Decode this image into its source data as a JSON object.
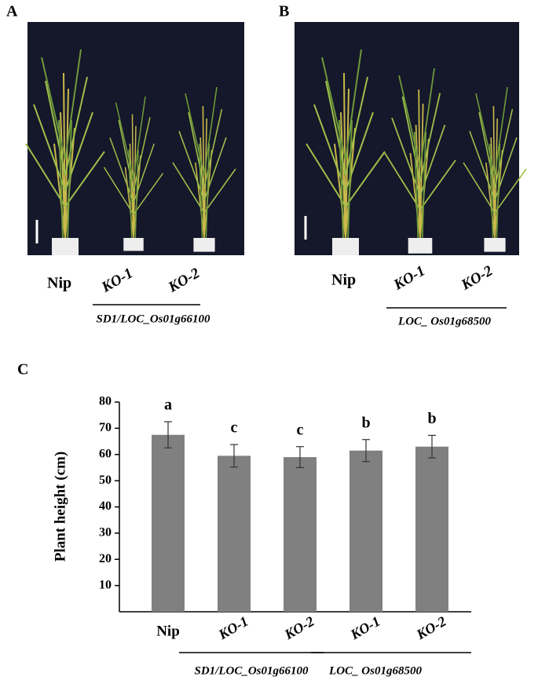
{
  "panels": {
    "A": {
      "label": "A",
      "photo_labels": [
        "Nip",
        "KO-1",
        "KO-2"
      ],
      "group": "SD1/LOC_Os01g66100"
    },
    "B": {
      "label": "B",
      "photo_labels": [
        "Nip",
        "KO-1",
        "KO-2"
      ],
      "group": "LOC_ Os01g68500"
    }
  },
  "chart_data": {
    "type": "bar",
    "panel_label": "C",
    "y_label": "Plant height (cm)",
    "categories": [
      "Nip",
      "KO-1",
      "KO-2",
      "KO-1",
      "KO-2"
    ],
    "values": [
      67.5,
      59.5,
      59,
      61.5,
      63
    ],
    "errors": [
      5,
      4.3,
      4,
      4.2,
      4.3
    ],
    "letters": [
      "a",
      "c",
      "c",
      "b",
      "b"
    ],
    "groups": [
      "SD1/LOC_Os01g66100",
      "LOC_ Os01g68500"
    ],
    "color": "#808080",
    "ylim": [
      0,
      80
    ],
    "yticks": [
      10,
      20,
      30,
      40,
      50,
      60,
      70,
      80
    ],
    "grid": false
  }
}
